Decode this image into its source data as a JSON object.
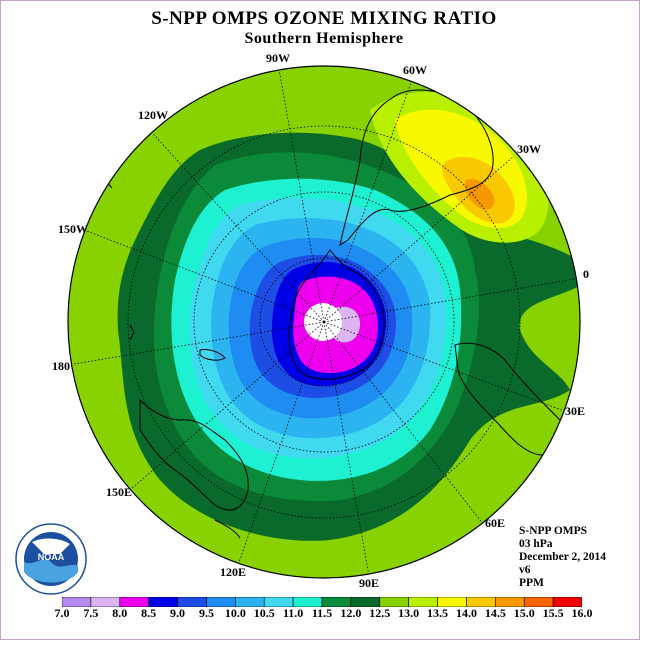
{
  "header": {
    "title": "S-NPP OMPS OZONE MIXING RATIO",
    "subtitle": "Southern Hemisphere"
  },
  "map": {
    "projection": "polar-stereographic-south",
    "longitude_labels": [
      "90W",
      "60W",
      "120W",
      "30W",
      "150W",
      "0",
      "180",
      "30E",
      "150E",
      "60E",
      "120E",
      "90E"
    ]
  },
  "info": {
    "instrument": "S-NPP OMPS",
    "level": "03 hPa",
    "date": "December 2, 2014",
    "version": "v6",
    "units": "PPM"
  },
  "colorbar": {
    "labels": [
      "7.0",
      "7.5",
      "8.0",
      "8.5",
      "9.0",
      "9.5",
      "10.0",
      "10.5",
      "11.0",
      "11.5",
      "12.0",
      "12.5",
      "13.0",
      "13.5",
      "14.0",
      "14.5",
      "15.0",
      "15.5",
      "16.0"
    ],
    "colors": [
      "#b58aee",
      "#dcb4f2",
      "#ee00ee",
      "#0000e6",
      "#1e4de6",
      "#1e8cf0",
      "#2cb4f0",
      "#40d9f0",
      "#1ef0d2",
      "#0b8a3a",
      "#0a6a2c",
      "#87d200",
      "#b8f000",
      "#f8f800",
      "#f8c800",
      "#f89800",
      "#f86400",
      "#f00000",
      "#8c5a3c"
    ]
  },
  "logo": {
    "text": "NOAA"
  }
}
